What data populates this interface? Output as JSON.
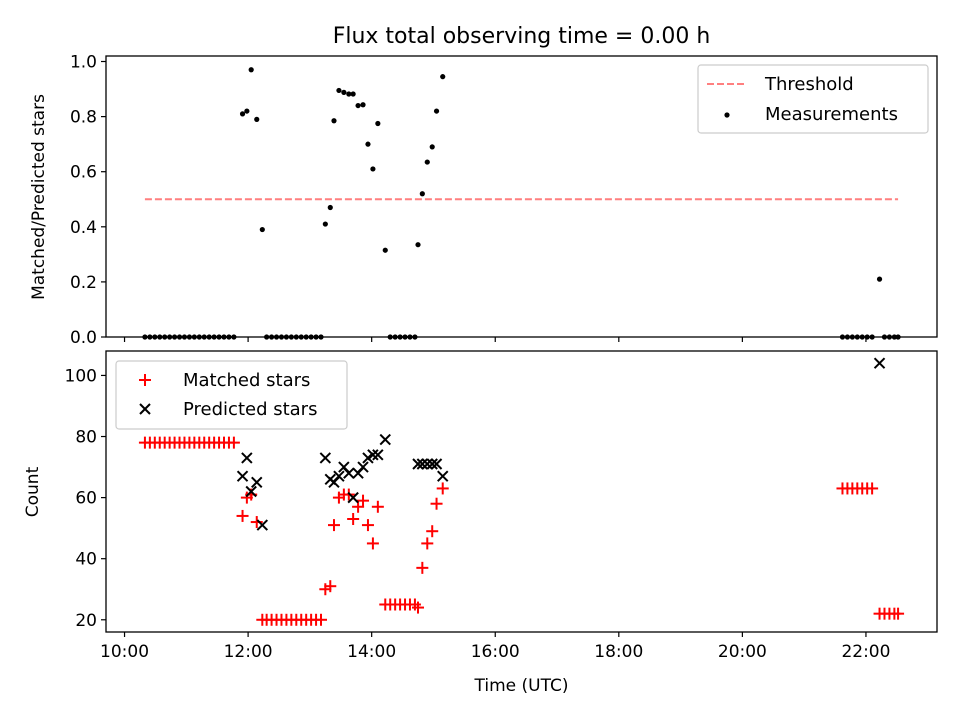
{
  "chart_data": [
    {
      "type": "scatter",
      "title": "Flux total observing time = 0.00 h",
      "xlabel": "",
      "ylabel": "Matched/Predicted stars",
      "xlim": [
        9.7,
        23.15
      ],
      "ylim": [
        0.0,
        1.02
      ],
      "yticks": [
        0.0,
        0.2,
        0.4,
        0.6,
        0.8,
        1.0
      ],
      "ytick_labels": [
        "0.0",
        "0.2",
        "0.4",
        "0.6",
        "0.8",
        "1.0"
      ],
      "x_tick_labels_visible": false,
      "grid": false,
      "legend": {
        "placement": "upper right",
        "entries": [
          "Threshold",
          "Measurements"
        ]
      },
      "threshold": {
        "name": "Threshold",
        "y": 0.5,
        "x": [
          10.33,
          22.52
        ],
        "color": "#ff7f7f",
        "style": "dashed"
      },
      "series": [
        {
          "name": "Measurements",
          "marker": "dot",
          "color": "#000000",
          "x": [
            10.33,
            10.41,
            10.49,
            10.57,
            10.65,
            10.73,
            10.81,
            10.89,
            10.97,
            11.05,
            11.13,
            11.21,
            11.29,
            11.37,
            11.45,
            11.53,
            11.61,
            11.69,
            11.77,
            11.91,
            11.98,
            12.05,
            12.14,
            12.23,
            12.3,
            12.38,
            12.46,
            12.54,
            12.62,
            12.7,
            12.78,
            12.86,
            12.94,
            13.02,
            13.1,
            13.18,
            13.25,
            13.33,
            13.39,
            13.47,
            13.55,
            13.63,
            13.7,
            13.78,
            13.86,
            13.94,
            14.02,
            14.1,
            14.22,
            14.3,
            14.38,
            14.46,
            14.54,
            14.62,
            14.7,
            14.75,
            14.82,
            14.9,
            14.98,
            15.05,
            15.15,
            21.62,
            21.7,
            21.78,
            21.86,
            21.94,
            22.02,
            22.1,
            22.22,
            22.3,
            22.38,
            22.46,
            22.52
          ],
          "y": [
            0,
            0,
            0,
            0,
            0,
            0,
            0,
            0,
            0,
            0,
            0,
            0,
            0,
            0,
            0,
            0,
            0,
            0,
            0,
            0.81,
            0.82,
            0.97,
            0.79,
            0.39,
            0,
            0,
            0,
            0,
            0,
            0,
            0,
            0,
            0,
            0,
            0,
            0,
            0.41,
            0.47,
            0.785,
            0.895,
            0.888,
            0.882,
            0.882,
            0.84,
            0.843,
            0.7,
            0.61,
            0.775,
            0.315,
            0,
            0,
            0,
            0,
            0,
            0,
            0.335,
            0.52,
            0.635,
            0.69,
            0.82,
            0.945,
            0,
            0,
            0,
            0,
            0,
            0,
            0,
            0.21,
            0,
            0,
            0,
            0
          ]
        }
      ]
    },
    {
      "type": "scatter",
      "title": "",
      "xlabel": "Time (UTC)",
      "ylabel": "Count",
      "xlim": [
        9.7,
        23.15
      ],
      "ylim": [
        16,
        108
      ],
      "xticks": [
        10,
        12,
        14,
        16,
        18,
        20,
        22
      ],
      "xtick_labels": [
        "10:00",
        "12:00",
        "14:00",
        "16:00",
        "18:00",
        "20:00",
        "22:00"
      ],
      "yticks": [
        20,
        40,
        60,
        80,
        100
      ],
      "ytick_labels": [
        "20",
        "40",
        "60",
        "80",
        "100"
      ],
      "grid": false,
      "legend": {
        "placement": "upper left",
        "entries": [
          "Matched stars",
          "Predicted stars"
        ]
      },
      "series": [
        {
          "name": "Matched stars",
          "marker": "plus",
          "color": "#ff0000",
          "x": [
            10.33,
            10.41,
            10.49,
            10.57,
            10.65,
            10.73,
            10.81,
            10.89,
            10.97,
            11.05,
            11.13,
            11.21,
            11.29,
            11.37,
            11.45,
            11.53,
            11.61,
            11.69,
            11.77,
            11.91,
            11.98,
            12.05,
            12.14,
            12.23,
            12.3,
            12.38,
            12.46,
            12.54,
            12.62,
            12.7,
            12.78,
            12.86,
            12.94,
            13.02,
            13.1,
            13.18,
            13.25,
            13.33,
            13.39,
            13.47,
            13.55,
            13.63,
            13.7,
            13.78,
            13.86,
            13.94,
            14.02,
            14.1,
            14.22,
            14.3,
            14.38,
            14.46,
            14.54,
            14.62,
            14.7,
            14.75,
            14.82,
            14.9,
            14.98,
            15.05,
            15.15,
            21.62,
            21.7,
            21.78,
            21.86,
            21.94,
            22.02,
            22.1,
            22.22,
            22.3,
            22.38,
            22.46,
            22.52
          ],
          "y": [
            78,
            78,
            78,
            78,
            78,
            78,
            78,
            78,
            78,
            78,
            78,
            78,
            78,
            78,
            78,
            78,
            78,
            78,
            78,
            54,
            60,
            61,
            52,
            20,
            20,
            20,
            20,
            20,
            20,
            20,
            20,
            20,
            20,
            20,
            20,
            20,
            30,
            31,
            51,
            60,
            61,
            61,
            53,
            57,
            59,
            51,
            45,
            57,
            25,
            25,
            25,
            25,
            25,
            25,
            25,
            24,
            37,
            45,
            49,
            58,
            63,
            63,
            63,
            63,
            63,
            63,
            63,
            63,
            22,
            22,
            22,
            22,
            22
          ]
        },
        {
          "name": "Predicted stars",
          "marker": "x",
          "color": "#000000",
          "x": [
            11.91,
            11.98,
            12.05,
            12.14,
            12.23,
            13.25,
            13.33,
            13.39,
            13.47,
            13.55,
            13.63,
            13.7,
            13.78,
            13.86,
            13.94,
            14.02,
            14.1,
            14.22,
            14.75,
            14.82,
            14.9,
            14.98,
            15.05,
            15.15,
            22.22
          ],
          "y": [
            67,
            73,
            62,
            65,
            51,
            73,
            66,
            65,
            67,
            70,
            68,
            60,
            68,
            70,
            73,
            74,
            74,
            79,
            71,
            71,
            71,
            71,
            71,
            67,
            104
          ]
        }
      ]
    }
  ]
}
